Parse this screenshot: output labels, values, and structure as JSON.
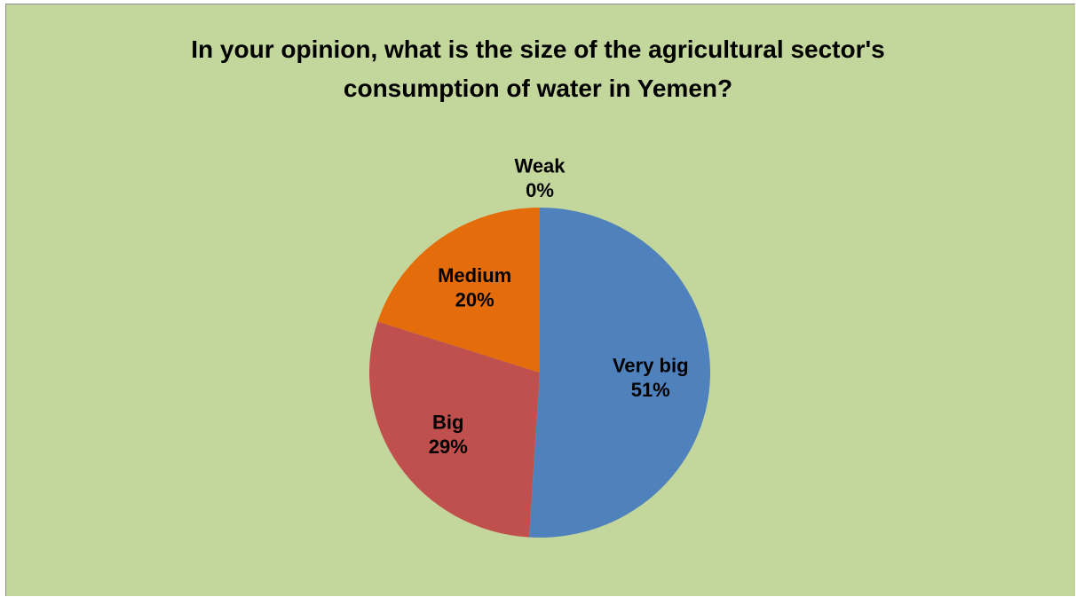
{
  "chart_data": {
    "type": "pie",
    "title": "In your opinion, what is the size of the agricultural sector's consumption of water in Yemen?",
    "categories": [
      "Very big",
      "Big",
      "Medium",
      "Weak"
    ],
    "values": [
      51,
      29,
      20,
      0
    ],
    "value_labels": [
      "51%",
      "29%",
      "20%",
      "0%"
    ],
    "colors": [
      "#4f81bd",
      "#c0504d",
      "#e46c0a",
      "#9bbb59"
    ]
  }
}
